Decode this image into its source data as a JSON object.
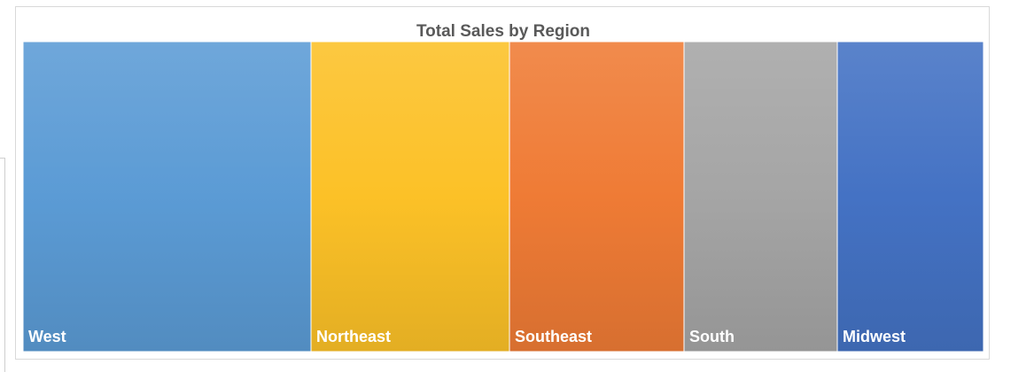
{
  "chart_data": {
    "type": "treemap",
    "title": "Total Sales by Region",
    "categories": [
      "West",
      "Northeast",
      "Southeast",
      "South",
      "Midwest"
    ],
    "values": [
      325,
      224,
      197,
      173,
      165
    ],
    "colors": [
      "#5b9bd5",
      "#fcc127",
      "#ef7b35",
      "#a5a5a5",
      "#4472c4"
    ]
  }
}
